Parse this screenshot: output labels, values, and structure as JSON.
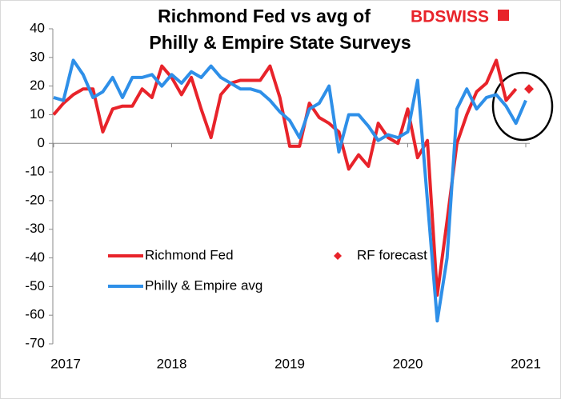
{
  "chart_data": {
    "type": "line",
    "title": [
      "Richmond Fed vs avg of",
      "Philly & Empire State Surveys"
    ],
    "logo": "BDSWISS",
    "categories": [
      "2017",
      null,
      null,
      null,
      null,
      null,
      null,
      null,
      null,
      null,
      null,
      null,
      "2018",
      null,
      null,
      null,
      null,
      null,
      null,
      null,
      null,
      null,
      null,
      null,
      "2019",
      null,
      null,
      null,
      null,
      null,
      null,
      null,
      null,
      null,
      null,
      null,
      "2020",
      null,
      null,
      null,
      null,
      null,
      null,
      null,
      null,
      null,
      null,
      null,
      "2021"
    ],
    "series": [
      {
        "name": "Richmond Fed",
        "color": "#e8232a",
        "style": "line",
        "values": [
          10,
          14,
          17,
          19,
          19,
          4,
          12,
          13,
          13,
          19,
          16,
          27,
          23,
          17,
          23,
          12,
          2,
          17,
          21,
          22,
          22,
          22,
          27,
          16,
          -1,
          -1,
          14,
          9,
          7,
          4,
          -9,
          -4,
          -8,
          7,
          2,
          0,
          12,
          -5,
          1,
          -53,
          -27,
          0,
          10,
          18,
          21,
          29,
          15,
          19,
          null
        ]
      },
      {
        "name": "RF forecast",
        "color": "#e8232a",
        "style": "marker",
        "values": [
          null,
          null,
          null,
          null,
          null,
          null,
          null,
          null,
          null,
          null,
          null,
          null,
          null,
          null,
          null,
          null,
          null,
          null,
          null,
          null,
          null,
          null,
          null,
          null,
          null,
          null,
          null,
          null,
          null,
          null,
          null,
          null,
          null,
          null,
          null,
          null,
          null,
          null,
          null,
          null,
          null,
          null,
          null,
          null,
          null,
          null,
          null,
          null,
          19
        ]
      },
      {
        "name": "Philly & Empire avg",
        "color": "#2e8fe8",
        "style": "line",
        "values": [
          16,
          15,
          29,
          24,
          16,
          18,
          23,
          16,
          23,
          23,
          24,
          20,
          24,
          21,
          25,
          23,
          27,
          23,
          21,
          19,
          19,
          18,
          15,
          11,
          8,
          2,
          12,
          14,
          20,
          -3,
          10,
          10,
          6,
          1,
          3,
          2,
          4,
          22,
          -20,
          -62,
          -40,
          12,
          19,
          12,
          16,
          17,
          13,
          7,
          15
        ]
      }
    ],
    "ylim": [
      -70,
      40
    ],
    "yticks": [
      40,
      30,
      20,
      10,
      0,
      -10,
      -20,
      -30,
      -40,
      -50,
      -60,
      -70
    ],
    "grid": false
  }
}
